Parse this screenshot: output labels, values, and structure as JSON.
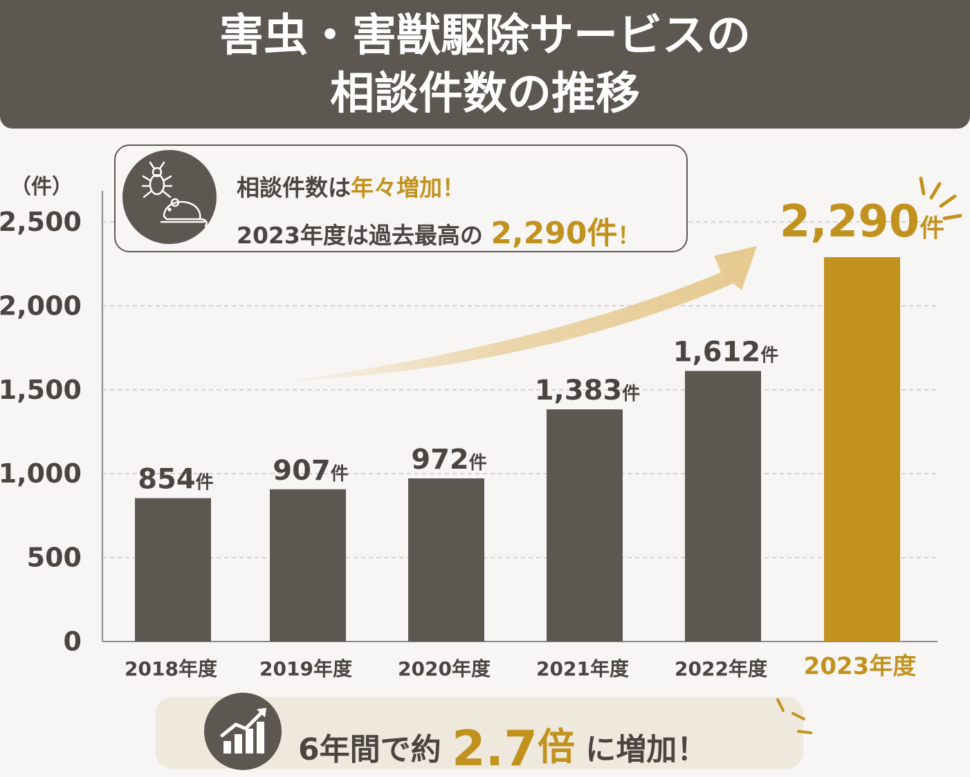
{
  "header": {
    "line1": "害虫・害獣駆除サービスの",
    "line2": "相談件数の推移"
  },
  "callout": {
    "line1_a": "相談件数は",
    "line1_b": "年々増加！",
    "line2_a": "2023年度は過去最高の",
    "line2_b": "2,290件",
    "line2_c": "！",
    "icon": "bug-and-rat-icon"
  },
  "bottom": {
    "text_a": "6年間で約",
    "multiplier": "2.7",
    "text_b": "倍",
    "text_c": "に増加！",
    "icon": "rising-chart-icon"
  },
  "colors": {
    "bar": "#5d5751",
    "highlight": "#c2921e",
    "arrow": "#e6c98f"
  },
  "chart_data": {
    "type": "bar",
    "unit_label": "（件）",
    "value_suffix": "件",
    "categories": [
      "2018年度",
      "2019年度",
      "2020年度",
      "2021年度",
      "2022年度",
      "2023年度"
    ],
    "values": [
      854,
      907,
      972,
      1383,
      1612,
      2290
    ],
    "value_labels": [
      "854",
      "907",
      "972",
      "1,383",
      "1,612",
      "2,290"
    ],
    "highlight_index": 5,
    "ylim": [
      0,
      2500
    ],
    "yticks": [
      0,
      500,
      1000,
      1500,
      2000,
      2500
    ],
    "ytick_labels": [
      "0",
      "500",
      "1,000",
      "1,500",
      "2,000",
      "2,500"
    ],
    "grid": true
  }
}
